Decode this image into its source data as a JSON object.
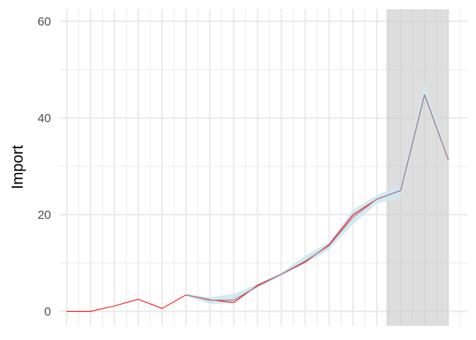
{
  "chart_data": {
    "type": "line",
    "title": "",
    "xlabel": "",
    "ylabel": "Import",
    "ylim": [
      -3,
      62.5
    ],
    "xlim": [
      -0.3,
      16.8
    ],
    "y_ticks": [
      0,
      20,
      40,
      60
    ],
    "x_tick_labels": [],
    "grid": true,
    "shaded_region": {
      "x_start": 13.4,
      "x_end": 16,
      "color": "#dcdcdc"
    },
    "series": [
      {
        "role": "observed",
        "color": "#ff0000",
        "x": [
          0,
          1,
          2,
          3,
          4,
          5,
          6,
          7,
          8,
          9,
          10,
          11,
          12,
          13,
          14,
          15,
          16
        ],
        "values": [
          0,
          0,
          1.1,
          2.5,
          0.6,
          3.4,
          2.4,
          1.8,
          5.4,
          7.7,
          10.2,
          13.8,
          20.0,
          23.2,
          25.0,
          44.8,
          31.3
        ]
      },
      {
        "role": "fitted",
        "color": "#b07a86",
        "band_color": "#cde8f1",
        "x": [
          5,
          6,
          7,
          8,
          9,
          10,
          11,
          12,
          13,
          14,
          15,
          16
        ],
        "values": [
          3.4,
          2.3,
          2.3,
          5.2,
          7.7,
          10.4,
          13.6,
          19.5,
          23.2,
          25.0,
          44.8,
          31.3
        ],
        "lower": [
          3.2,
          1.5,
          1.7,
          4.9,
          7.3,
          9.8,
          12.8,
          18.0,
          22.3,
          23.6,
          43.8,
          30.8
        ],
        "upper": [
          3.6,
          2.9,
          3.6,
          5.6,
          8.0,
          11.5,
          14.3,
          21.0,
          24.0,
          26.2,
          47.3,
          31.9
        ]
      }
    ]
  }
}
